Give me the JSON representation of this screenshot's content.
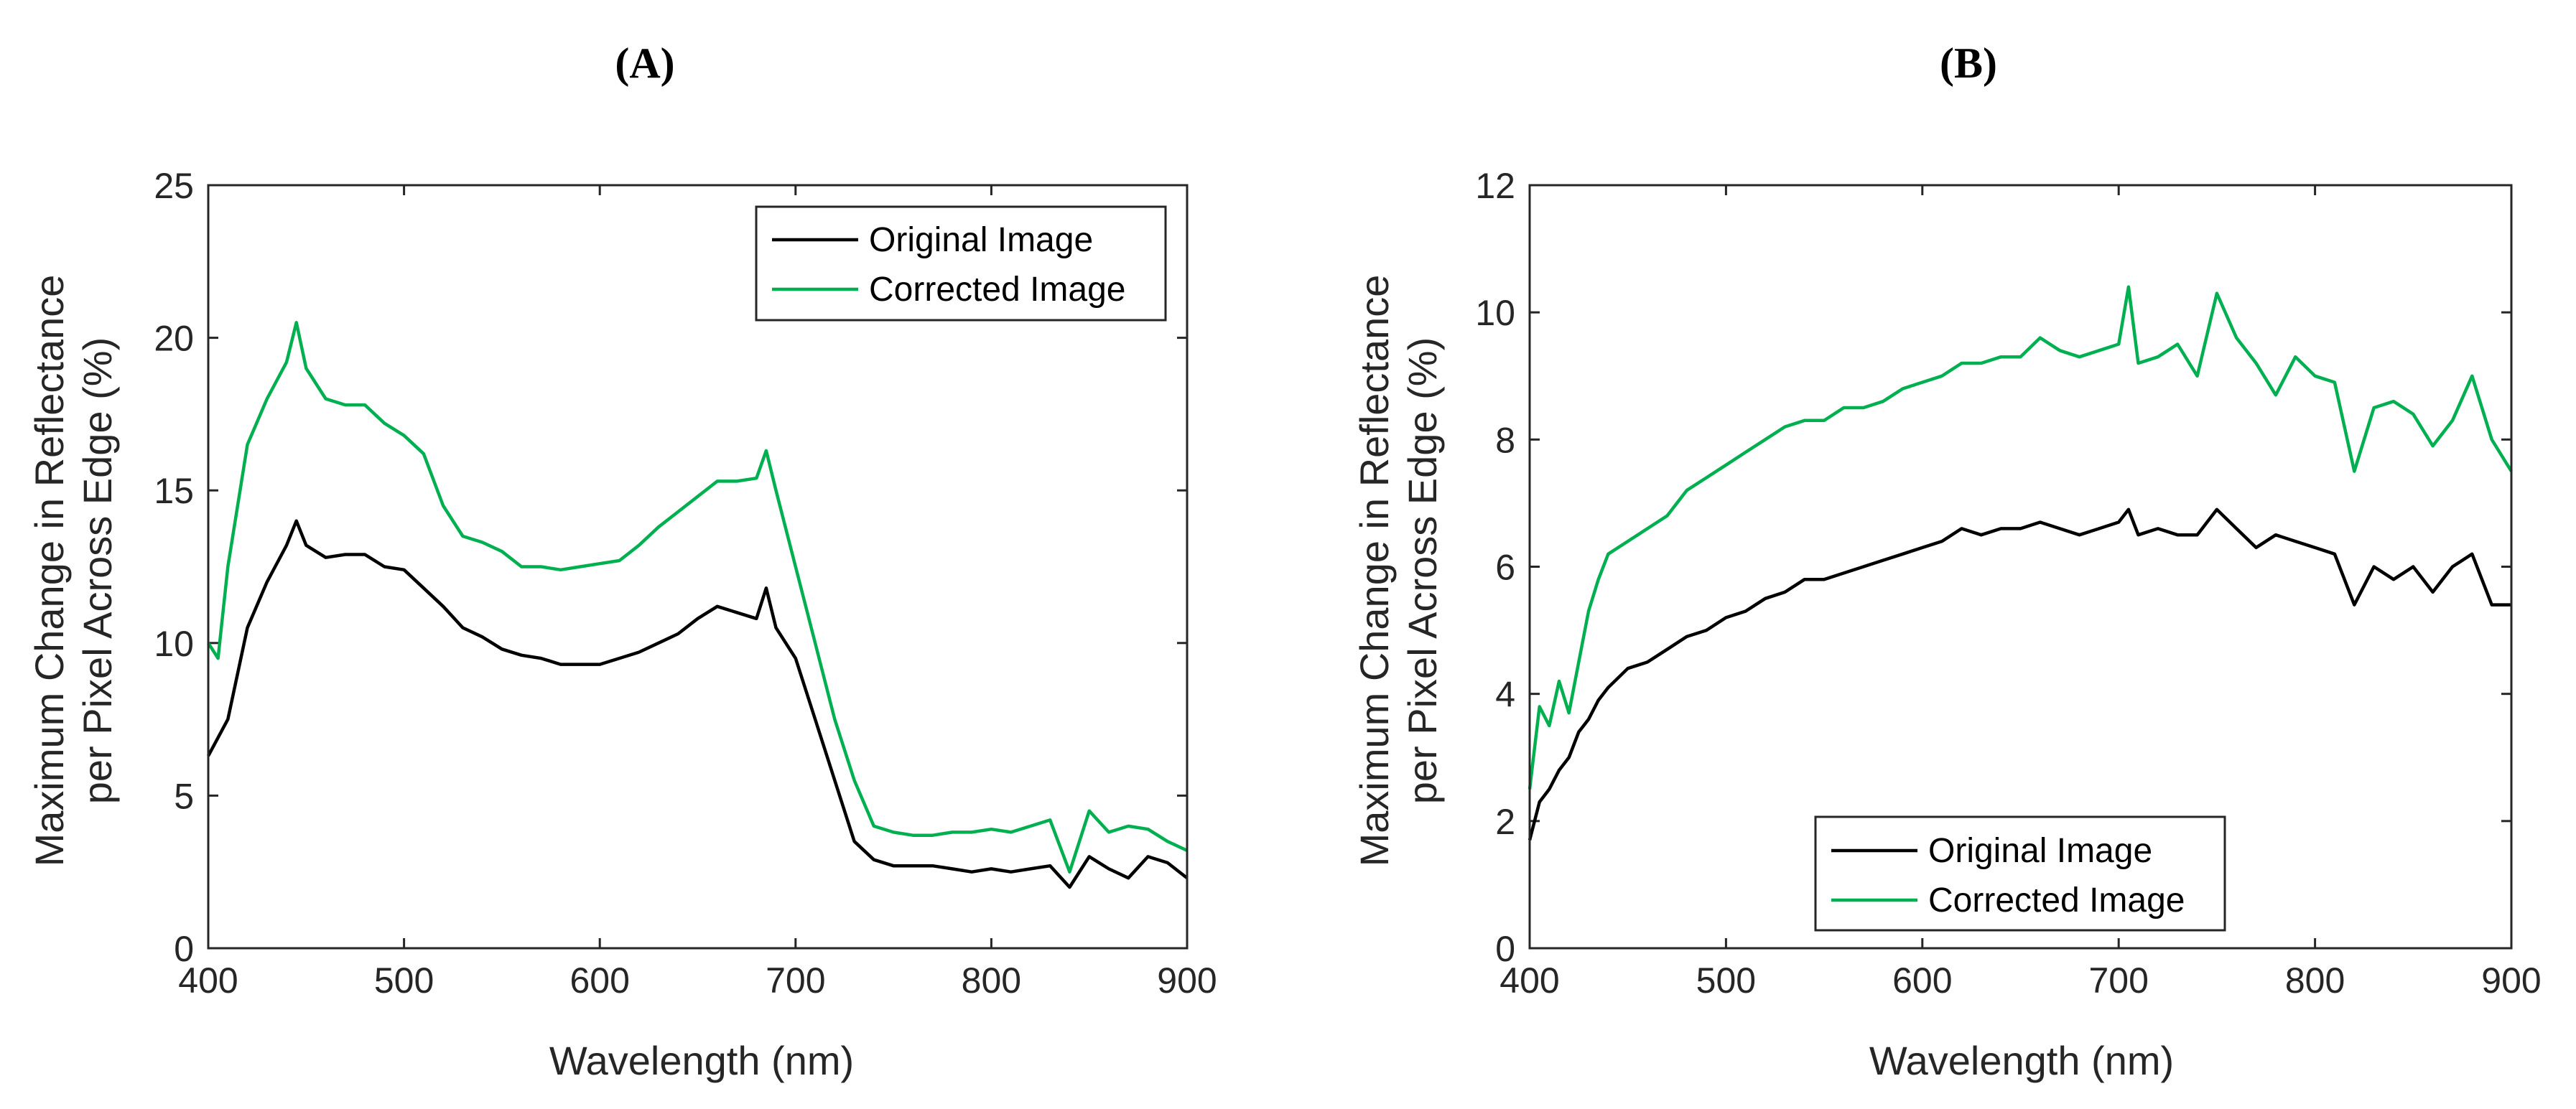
{
  "colors": {
    "original": "#000000",
    "corrected": "#00B050",
    "axis": "#262626"
  },
  "chart_data": [
    {
      "type": "line",
      "panel_label": "(A)",
      "title": "",
      "xlabel": "Wavelength (nm)",
      "ylabel_line1": "Maximum Change in Reflectance",
      "ylabel_line2": "per Pixel Across Edge (%)",
      "xlim": [
        400,
        900
      ],
      "ylim": [
        0,
        25
      ],
      "xticks": [
        400,
        500,
        600,
        700,
        800,
        900
      ],
      "yticks": [
        0,
        5,
        10,
        15,
        20,
        25
      ],
      "legend_position": "top-right",
      "series": [
        {
          "name": "Original Image",
          "color": "#000000",
          "x": [
            400,
            410,
            420,
            430,
            440,
            445,
            450,
            460,
            470,
            480,
            490,
            500,
            510,
            520,
            530,
            540,
            550,
            560,
            570,
            580,
            590,
            600,
            610,
            620,
            630,
            640,
            650,
            660,
            670,
            680,
            685,
            690,
            700,
            710,
            720,
            730,
            740,
            750,
            760,
            770,
            780,
            790,
            800,
            810,
            820,
            830,
            840,
            850,
            860,
            870,
            880,
            890,
            900
          ],
          "y": [
            6.3,
            7.5,
            10.5,
            12.0,
            13.2,
            14.0,
            13.2,
            12.8,
            12.9,
            12.9,
            12.5,
            12.4,
            11.8,
            11.2,
            10.5,
            10.2,
            9.8,
            9.6,
            9.5,
            9.3,
            9.3,
            9.3,
            9.5,
            9.7,
            10.0,
            10.3,
            10.8,
            11.2,
            11.0,
            10.8,
            11.8,
            10.5,
            9.5,
            7.5,
            5.5,
            3.5,
            2.9,
            2.7,
            2.7,
            2.7,
            2.6,
            2.5,
            2.6,
            2.5,
            2.6,
            2.7,
            2.0,
            3.0,
            2.6,
            2.3,
            3.0,
            2.8,
            2.3
          ]
        },
        {
          "name": "Corrected Image",
          "color": "#00B050",
          "x": [
            400,
            405,
            410,
            420,
            430,
            440,
            445,
            450,
            460,
            470,
            480,
            490,
            500,
            510,
            520,
            530,
            540,
            550,
            560,
            570,
            580,
            590,
            600,
            610,
            620,
            630,
            640,
            650,
            660,
            670,
            680,
            685,
            690,
            700,
            710,
            720,
            730,
            740,
            750,
            760,
            770,
            780,
            790,
            800,
            810,
            820,
            830,
            840,
            850,
            860,
            870,
            880,
            890,
            900
          ],
          "y": [
            10.0,
            9.5,
            12.5,
            16.5,
            18.0,
            19.2,
            20.5,
            19.0,
            18.0,
            17.8,
            17.8,
            17.2,
            16.8,
            16.2,
            14.5,
            13.5,
            13.3,
            13.0,
            12.5,
            12.5,
            12.4,
            12.5,
            12.6,
            12.7,
            13.2,
            13.8,
            14.3,
            14.8,
            15.3,
            15.3,
            15.4,
            16.3,
            15.0,
            12.5,
            10.0,
            7.5,
            5.5,
            4.0,
            3.8,
            3.7,
            3.7,
            3.8,
            3.8,
            3.9,
            3.8,
            4.0,
            4.2,
            2.5,
            4.5,
            3.8,
            4.0,
            3.9,
            3.5,
            3.2
          ]
        }
      ]
    },
    {
      "type": "line",
      "panel_label": "(B)",
      "title": "",
      "xlabel": "Wavelength (nm)",
      "ylabel_line1": "Maximum Change in Reflectance",
      "ylabel_line2": "per Pixel Across Edge (%)",
      "xlim": [
        400,
        900
      ],
      "ylim": [
        0,
        12
      ],
      "xticks": [
        400,
        500,
        600,
        700,
        800,
        900
      ],
      "yticks": [
        0,
        2,
        4,
        6,
        8,
        10,
        12
      ],
      "legend_position": "bottom-center",
      "series": [
        {
          "name": "Original Image",
          "color": "#000000",
          "x": [
            400,
            405,
            410,
            415,
            420,
            425,
            430,
            435,
            440,
            450,
            460,
            470,
            480,
            490,
            500,
            510,
            520,
            530,
            540,
            550,
            560,
            570,
            580,
            590,
            600,
            610,
            620,
            630,
            640,
            650,
            660,
            670,
            680,
            690,
            700,
            705,
            710,
            720,
            730,
            740,
            750,
            760,
            770,
            780,
            790,
            800,
            810,
            820,
            830,
            840,
            850,
            860,
            870,
            880,
            890,
            900
          ],
          "y": [
            1.7,
            2.3,
            2.5,
            2.8,
            3.0,
            3.4,
            3.6,
            3.9,
            4.1,
            4.4,
            4.5,
            4.7,
            4.9,
            5.0,
            5.2,
            5.3,
            5.5,
            5.6,
            5.8,
            5.8,
            5.9,
            6.0,
            6.1,
            6.2,
            6.3,
            6.4,
            6.6,
            6.5,
            6.6,
            6.6,
            6.7,
            6.6,
            6.5,
            6.6,
            6.7,
            6.9,
            6.5,
            6.6,
            6.5,
            6.5,
            6.9,
            6.6,
            6.3,
            6.5,
            6.4,
            6.3,
            6.2,
            5.4,
            6.0,
            5.8,
            6.0,
            5.6,
            6.0,
            6.2,
            5.4,
            5.4
          ]
        },
        {
          "name": "Corrected Image",
          "color": "#00B050",
          "x": [
            400,
            405,
            410,
            415,
            420,
            425,
            430,
            435,
            440,
            450,
            460,
            470,
            480,
            490,
            500,
            510,
            520,
            530,
            540,
            550,
            560,
            570,
            580,
            590,
            600,
            610,
            620,
            630,
            640,
            650,
            660,
            670,
            680,
            690,
            700,
            705,
            710,
            720,
            730,
            740,
            750,
            760,
            770,
            780,
            790,
            800,
            810,
            820,
            830,
            840,
            850,
            860,
            870,
            880,
            890,
            900
          ],
          "y": [
            2.5,
            3.8,
            3.5,
            4.2,
            3.7,
            4.5,
            5.3,
            5.8,
            6.2,
            6.4,
            6.6,
            6.8,
            7.2,
            7.4,
            7.6,
            7.8,
            8.0,
            8.2,
            8.3,
            8.3,
            8.5,
            8.5,
            8.6,
            8.8,
            8.9,
            9.0,
            9.2,
            9.2,
            9.3,
            9.3,
            9.6,
            9.4,
            9.3,
            9.4,
            9.5,
            10.4,
            9.2,
            9.3,
            9.5,
            9.0,
            10.3,
            9.6,
            9.2,
            8.7,
            9.3,
            9.0,
            8.9,
            7.5,
            8.5,
            8.6,
            8.4,
            7.9,
            8.3,
            9.0,
            8.0,
            7.5
          ]
        }
      ]
    }
  ]
}
